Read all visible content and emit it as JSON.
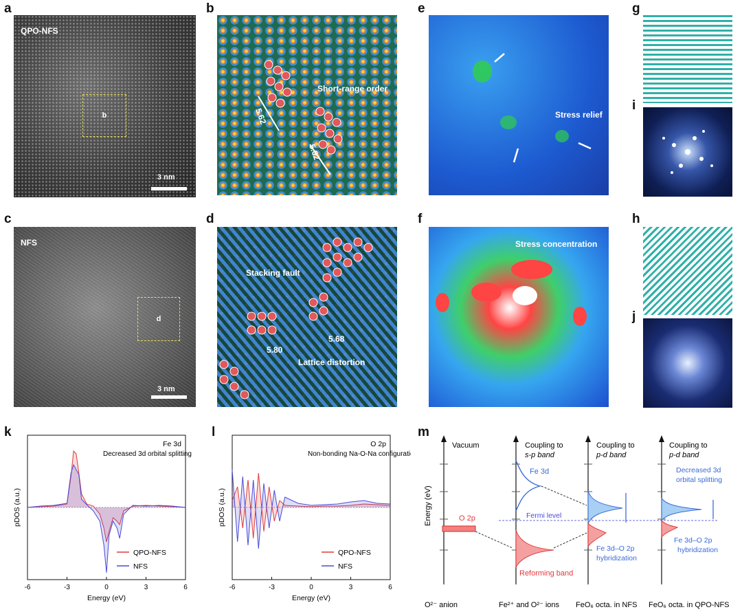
{
  "panels": {
    "a": {
      "letter": "a",
      "label": "QPO-NFS",
      "box_label": "b",
      "scale": "3 nm"
    },
    "b": {
      "letter": "b",
      "annotation": "Short-range order",
      "d1": "5.62",
      "d2": "5.62"
    },
    "c": {
      "letter": "c",
      "label": "NFS",
      "box_label": "d",
      "scale": "3 nm"
    },
    "d": {
      "letter": "d",
      "fault": "Stacking fault",
      "distortion": "Lattice distortion",
      "d1": "5.80",
      "d2": "5.68"
    },
    "e": {
      "letter": "e",
      "annotation": "Stress relief"
    },
    "f": {
      "letter": "f",
      "annotation": "Stress concentration"
    },
    "g": {
      "letter": "g"
    },
    "h": {
      "letter": "h"
    },
    "i": {
      "letter": "i"
    },
    "j": {
      "letter": "j"
    },
    "k": {
      "letter": "k"
    },
    "l": {
      "letter": "l"
    },
    "m": {
      "letter": "m"
    }
  },
  "chart_data": [
    {
      "type": "line",
      "panel": "k",
      "title": "Fe 3d",
      "annotation": "Decreased 3d orbital splitting",
      "xlabel": "Energy (eV)",
      "ylabel": "pDOS (a.u.)",
      "xlim": [
        -6,
        6
      ],
      "xticks": [
        "-6",
        "-3",
        "0",
        "3",
        "6"
      ],
      "legend": "bottom-right",
      "series": [
        {
          "name": "QPO-NFS",
          "color": "#e03a3a",
          "x": [
            -6,
            -5,
            -4,
            -3,
            -2.7,
            -2.5,
            -2.3,
            -2.1,
            -1.9,
            -1.5,
            -1,
            -0.5,
            -0.2,
            0,
            0.2,
            0.5,
            0.8,
            1,
            1.3,
            2,
            3,
            4,
            5,
            6
          ],
          "y": [
            0,
            0.01,
            0.02,
            0.05,
            0.45,
            0.82,
            0.78,
            0.5,
            0.2,
            0.05,
            0.02,
            -0.1,
            -0.3,
            -0.5,
            -0.35,
            -0.15,
            -0.2,
            -0.25,
            -0.05,
            0.02,
            0.03,
            0.02,
            0.01,
            0
          ]
        },
        {
          "name": "NFS",
          "color": "#4a4ad8",
          "x": [
            -6,
            -5,
            -4,
            -3,
            -2.7,
            -2.5,
            -2.3,
            -2.1,
            -1.9,
            -1.5,
            -1,
            -0.5,
            -0.2,
            0,
            0.2,
            0.5,
            0.8,
            1,
            1.3,
            2,
            3,
            4,
            5,
            6
          ],
          "y": [
            0,
            0.02,
            0.03,
            0.06,
            0.5,
            0.62,
            0.55,
            0.48,
            0.12,
            0.04,
            -0.05,
            -0.2,
            -0.55,
            -0.95,
            -0.4,
            -0.2,
            -0.3,
            -0.45,
            -0.1,
            0.03,
            0.02,
            0.03,
            0.02,
            0
          ]
        }
      ]
    },
    {
      "type": "line",
      "panel": "l",
      "title": "O 2p",
      "annotation": "Non-bonding Na-O-Na configuration",
      "xlabel": "Energy (eV)",
      "ylabel": "pDOS (a.u.)",
      "xlim": [
        -6,
        6
      ],
      "xticks": [
        "-6",
        "-3",
        "0",
        "3",
        "6"
      ],
      "legend": "bottom-right",
      "series": [
        {
          "name": "QPO-NFS",
          "color": "#e03a3a",
          "x": [
            -6,
            -5.6,
            -5.2,
            -4.8,
            -4.4,
            -4,
            -3.6,
            -3.2,
            -2.8,
            -2.4,
            -2,
            -1,
            0,
            1,
            2,
            3,
            4,
            5,
            6
          ],
          "y": [
            0.1,
            0.3,
            -0.3,
            0.4,
            -0.45,
            0.5,
            -0.35,
            0.3,
            -0.2,
            0.1,
            0.03,
            0.02,
            0.01,
            0.02,
            0.02,
            0.03,
            0.05,
            0.04,
            0.03
          ]
        },
        {
          "name": "NFS",
          "color": "#4a4ad8",
          "x": [
            -6,
            -5.6,
            -5.2,
            -4.8,
            -4.4,
            -4,
            -3.6,
            -3.2,
            -2.8,
            -2.4,
            -2,
            -1,
            0,
            1,
            2,
            3,
            4,
            5,
            6
          ],
          "y": [
            0.55,
            -0.5,
            0.45,
            -0.55,
            0.4,
            -0.6,
            0.35,
            -0.3,
            0.25,
            -0.2,
            0.15,
            0.06,
            0.03,
            0.04,
            0.05,
            0.08,
            0.1,
            0.06,
            0.05
          ]
        }
      ]
    }
  ],
  "diagram_m": {
    "ylabel": "Energy (eV)",
    "columns": [
      {
        "header": "Vacuum",
        "footer": "O²⁻ anion"
      },
      {
        "header_1": "Coupling to",
        "header_2": "s-p band",
        "footer": "Fe²⁺ and O²⁻ ions"
      },
      {
        "header_1": "Coupling to",
        "header_2": "p-d band",
        "footer": "FeO₆ octa. in NFS"
      },
      {
        "header_1": "Coupling to",
        "header_2": "p-d band",
        "footer": "FeO₆ octa. in QPO-NFS"
      }
    ],
    "o2p": "O 2p",
    "fe3d": "Fe 3d",
    "fermi": "Fermi level",
    "reforming": "Reforming band",
    "hybrid_1": "Fe 3d–O 2p",
    "hybrid_2": "hybridization",
    "decreased_1": "Decreased 3d",
    "decreased_2": "orbital splitting"
  }
}
